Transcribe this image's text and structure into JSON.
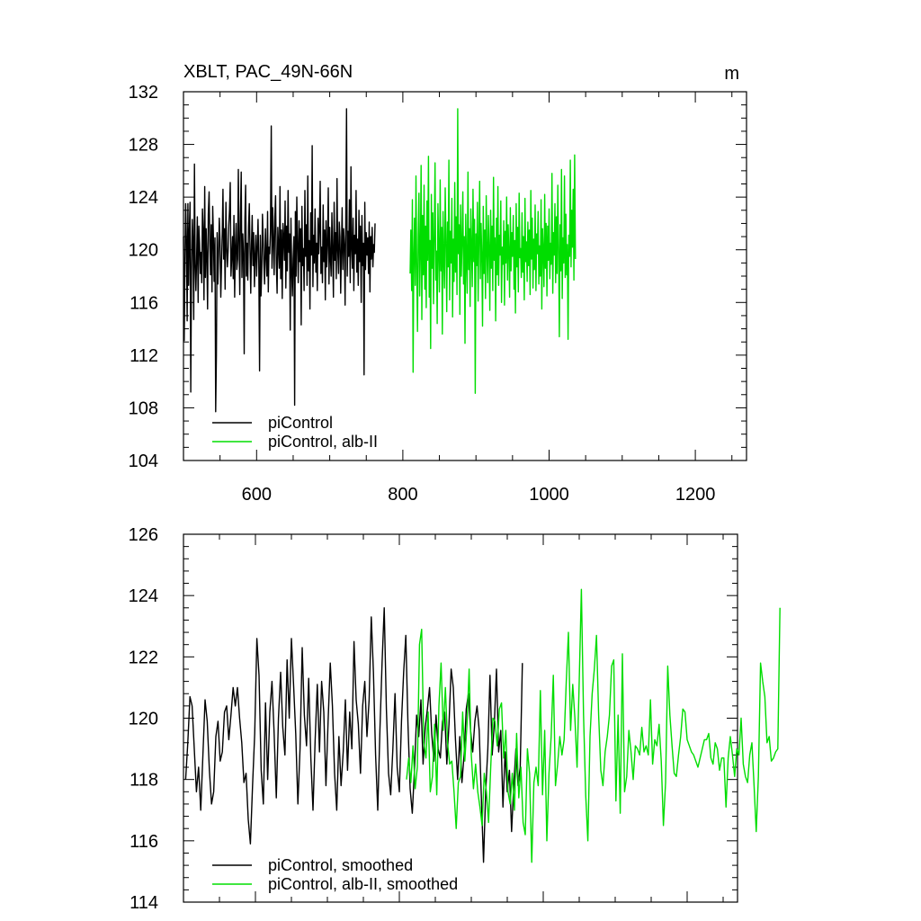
{
  "chart_data": [
    {
      "type": "line",
      "title": "XBLT, PAC_49N-66N",
      "units": "m",
      "xlim": [
        500,
        1270
      ],
      "ylim": [
        104,
        132
      ],
      "xticks": [
        600,
        800,
        1000,
        1200
      ],
      "yticks": [
        104,
        108,
        112,
        116,
        120,
        124,
        128,
        132
      ],
      "legend_position": "bottom-left",
      "series": [
        {
          "name": "piControl",
          "color": "#000000",
          "x_start": 500,
          "x_step": 1,
          "values": [
            121.0,
            113.1,
            118.7,
            123.5,
            120.6,
            114.6,
            123.5,
            117.3,
            121.4,
            123.6,
            109.2,
            118.4,
            122.3,
            120.6,
            114.7,
            126.5,
            118.9,
            116.9,
            119.3,
            122.5,
            116.0,
            121.8,
            120.5,
            118.2,
            119.8,
            117.5,
            123.1,
            121.4,
            116.2,
            124.8,
            117.9,
            121.6,
            119.4,
            115.5,
            122.7,
            124.4,
            120.3,
            118.1,
            121.9,
            116.8,
            123.3,
            121.0,
            117.6,
            120.9,
            107.7,
            112.0,
            121.3,
            117.4,
            119.6,
            122.4,
            120.8,
            116.4,
            118.9,
            121.2,
            124.6,
            119.3,
            121.6,
            117.0,
            123.6,
            120.2,
            118.7,
            119.9,
            121.9,
            123.0,
            125.1,
            118.0,
            119.5,
            121.0,
            117.8,
            122.6,
            116.4,
            120.1,
            122.0,
            118.5,
            119.3,
            126.1,
            120.6,
            116.6,
            122.7,
            125.9,
            117.9,
            121.2,
            119.7,
            112.1,
            122.3,
            124.9,
            118.0,
            120.5,
            117.7,
            121.8,
            123.5,
            119.9,
            116.7,
            120.4,
            122.6,
            118.8,
            121.3,
            117.2,
            119.6,
            121.1,
            118.0,
            120.1,
            122.3,
            119.2,
            110.8,
            121.1,
            116.5,
            118.3,
            122.7,
            120.8,
            118.9,
            117.4,
            121.6,
            119.5,
            118.0,
            122.9,
            116.8,
            120.2,
            119.7,
            121.4,
            129.4,
            118.6,
            123.2,
            120.7,
            118.1,
            122.5,
            124.1,
            119.0,
            116.7,
            121.7,
            120.2,
            118.6,
            124.8,
            117.8,
            121.5,
            116.3,
            122.0,
            120.9,
            119.2,
            123.7,
            117.1,
            121.8,
            118.4,
            124.5,
            119.8,
            121.2,
            113.9,
            122.4,
            118.5,
            116.5,
            119.3,
            121.0,
            108.2,
            122.9,
            118.0,
            124.0,
            120.4,
            117.5,
            122.2,
            119.1,
            121.6,
            114.3,
            123.3,
            118.8,
            120.1,
            116.9,
            124.5,
            119.5,
            121.9,
            117.3,
            125.6,
            118.4,
            120.7,
            115.5,
            122.8,
            119.6,
            127.9,
            117.2,
            121.1,
            119.0,
            123.1,
            118.3,
            120.5,
            116.9,
            122.4,
            119.7,
            121.8,
            125.2,
            118.2,
            120.2,
            117.5,
            123.4,
            119.1,
            121.5,
            116.2,
            122.2,
            118.7,
            120.6,
            124.7,
            117.4,
            121.7,
            119.4,
            118.0,
            122.8,
            120.1,
            116.4,
            123.6,
            119.2,
            121.3,
            117.8,
            125.4,
            120.0,
            118.2,
            122.1,
            121.0,
            116.7,
            119.9,
            123.2,
            118.5,
            121.6,
            120.3,
            115.8,
            122.6,
            130.7,
            118.0,
            121.4,
            119.5,
            123.8,
            117.5,
            126.3,
            120.1,
            118.6,
            122.4,
            116.9,
            121.1,
            119.7,
            124.5,
            118.3,
            120.8,
            117.3,
            123.0,
            119.1,
            121.8,
            116.0,
            122.6,
            118.8,
            120.5,
            110.5,
            123.6,
            118.5,
            121.3,
            119.6,
            120.9,
            118.2,
            122.1,
            116.8,
            121.0,
            119.3,
            121.7,
            118.7,
            120.4,
            119.8,
            122.0
          ]
        },
        {
          "name": "piControl, alb-II",
          "color": "#00dd00",
          "x_start": 810,
          "x_step": 1,
          "values": [
            118.2,
            121.5,
            116.9,
            123.8,
            110.7,
            119.6,
            122.4,
            117.3,
            125.6,
            118.9,
            113.8,
            121.1,
            124.3,
            116.5,
            119.8,
            126.4,
            114.7,
            122.6,
            118.1,
            124.9,
            117.0,
            121.8,
            115.6,
            123.7,
            119.2,
            127.1,
            116.4,
            120.7,
            112.5,
            124.2,
            118.6,
            122.8,
            115.9,
            121.3,
            126.6,
            117.7,
            119.9,
            114.4,
            123.5,
            120.1,
            116.8,
            125.3,
            118.4,
            121.7,
            113.6,
            122.9,
            119.4,
            117.1,
            124.7,
            120.6,
            115.3,
            122.1,
            118.7,
            126.8,
            116.2,
            121.4,
            119.0,
            123.9,
            114.9,
            120.8,
            117.6,
            125.1,
            118.3,
            122.5,
            116.6,
            130.7,
            119.7,
            121.9,
            115.1,
            123.4,
            118.0,
            120.4,
            124.4,
            117.4,
            121.0,
            112.9,
            122.7,
            119.3,
            116.7,
            125.9,
            118.5,
            121.6,
            115.7,
            123.1,
            120.0,
            117.2,
            124.6,
            119.1,
            122.3,
            109.1,
            121.2,
            118.8,
            123.6,
            116.1,
            120.5,
            125.2,
            117.8,
            122.0,
            119.5,
            114.2,
            123.3,
            118.2,
            121.5,
            116.3,
            124.1,
            119.9,
            117.5,
            122.6,
            120.3,
            115.4,
            123.0,
            118.6,
            121.8,
            116.9,
            125.5,
            119.2,
            120.9,
            114.6,
            122.4,
            118.1,
            124.8,
            117.3,
            121.1,
            119.6,
            123.7,
            116.0,
            120.2,
            118.9,
            122.2,
            115.8,
            121.4,
            119.0,
            124.0,
            117.7,
            121.9,
            119.8,
            116.4,
            123.2,
            118.4,
            121.3,
            119.5,
            122.6,
            117.0,
            120.7,
            115.2,
            123.5,
            118.7,
            121.7,
            116.8,
            124.3,
            119.4,
            120.1,
            117.9,
            122.8,
            118.3,
            121.0,
            116.2,
            123.9,
            119.1,
            120.6,
            117.6,
            122.1,
            118.8,
            121.5,
            116.6,
            124.5,
            119.3,
            122.4,
            117.1,
            120.8,
            118.5,
            123.4,
            116.9,
            121.2,
            119.7,
            122.9,
            117.4,
            120.3,
            118.0,
            123.8,
            115.5,
            121.6,
            119.9,
            117.2,
            124.2,
            118.6,
            122.0,
            116.5,
            121.8,
            119.2,
            123.1,
            117.8,
            120.5,
            118.9,
            125.8,
            116.7,
            121.3,
            119.6,
            123.5,
            117.5,
            122.5,
            118.2,
            124.9,
            119.8,
            113.4,
            121.9,
            118.4,
            126.1,
            116.3,
            120.9,
            119.0,
            125.6,
            117.9,
            122.7,
            118.1,
            120.4,
            113.2,
            121.1,
            119.5,
            126.8,
            118.7,
            123.0,
            120.2,
            124.6,
            117.7,
            127.2,
            119.3
          ]
        }
      ]
    },
    {
      "type": "line",
      "xlim": [
        500,
        1270
      ],
      "ylim": [
        114,
        126
      ],
      "yticks": [
        114,
        116,
        118,
        120,
        122,
        124,
        126
      ],
      "legend_position": "bottom-left",
      "series": [
        {
          "name": "piControl, smoothed",
          "color": "#000000",
          "x_start": 503,
          "x_step": 3,
          "values": [
            118.0,
            119.2,
            120.7,
            120.4,
            119.0,
            117.6,
            118.4,
            117.0,
            118.8,
            120.6,
            119.9,
            118.3,
            117.2,
            117.6,
            119.4,
            119.9,
            118.6,
            118.9,
            120.2,
            120.4,
            119.3,
            120.1,
            121.0,
            120.4,
            121.0,
            120.0,
            119.2,
            117.9,
            118.2,
            116.7,
            115.9,
            117.8,
            119.5,
            122.6,
            121.4,
            118.3,
            117.2,
            120.5,
            118.0,
            120.2,
            121.2,
            119.5,
            117.4,
            120.0,
            121.5,
            119.7,
            118.8,
            121.9,
            120.0,
            122.6,
            121.1,
            119.5,
            117.2,
            119.0,
            122.3,
            120.1,
            119.1,
            121.3,
            118.7,
            117.0,
            119.3,
            121.1,
            118.9,
            121.2,
            120.2,
            117.8,
            119.9,
            121.8,
            120.4,
            118.2,
            117.0,
            119.4,
            117.8,
            118.9,
            120.6,
            118.3,
            120.2,
            119.0,
            122.5,
            120.6,
            119.8,
            118.2,
            120.4,
            121.2,
            119.4,
            120.6,
            123.3,
            121.5,
            118.8,
            117.0,
            119.6,
            121.8,
            123.6,
            120.3,
            118.2,
            117.5,
            119.0,
            120.8,
            118.4,
            117.6,
            119.9,
            121.5,
            122.7,
            119.8,
            117.7,
            116.9,
            118.3,
            120.1,
            119.4,
            120.6,
            118.5,
            119.7,
            120.3,
            121.0,
            119.5,
            118.6,
            120.1,
            119.0,
            118.7,
            119.9,
            120.2,
            118.5,
            119.8,
            121.6,
            121.0,
            119.3,
            118.0,
            119.4,
            117.9,
            118.8,
            120.3,
            120.8,
            119.6,
            118.9,
            119.9,
            120.4,
            119.6,
            117.4,
            115.3,
            117.6,
            119.0,
            121.4,
            118.8,
            119.8,
            121.6,
            118.9,
            119.6,
            117.1,
            118.9,
            117.6,
            118.3,
            116.3,
            117.8,
            119.0,
            117.8,
            118.4,
            121.8
          ]
        },
        {
          "name": "piControl, alb-II, smoothed",
          "color": "#00dd00",
          "x_start": 810,
          "x_step": 3,
          "values": [
            118.0,
            118.7,
            117.9,
            119.1,
            117.7,
            118.4,
            122.4,
            122.9,
            119.2,
            118.7,
            120.2,
            117.6,
            118.1,
            119.8,
            117.5,
            120.4,
            121.8,
            119.6,
            121.0,
            119.2,
            118.5,
            118.6,
            117.6,
            116.4,
            117.9,
            118.1,
            120.2,
            118.6,
            119.8,
            121.6,
            118.8,
            117.7,
            118.5,
            117.6,
            117.1,
            116.5,
            118.2,
            117.6,
            116.6,
            118.4,
            120.0,
            119.9,
            119.1,
            120.3,
            120.5,
            118.7,
            119.6,
            117.6,
            117.2,
            118.2,
            117.0,
            119.5,
            117.4,
            118.4,
            116.6,
            116.2,
            119.0,
            118.2,
            115.3,
            117.9,
            118.4,
            117.8,
            120.9,
            117.5,
            119.6,
            116.0,
            118.2,
            119.4,
            121.4,
            117.8,
            118.5,
            119.4,
            118.8,
            119.3,
            121.2,
            122.8,
            119.6,
            121.1,
            120.0,
            118.4,
            121.2,
            124.2,
            120.1,
            117.5,
            116.0,
            119.4,
            120.8,
            121.6,
            122.7,
            120.1,
            118.3,
            117.8,
            118.9,
            119.4,
            120.1,
            121.7,
            121.9,
            117.3,
            120.1,
            116.9,
            122.1,
            117.6,
            118.1,
            119.6,
            118.9,
            118.0,
            119.1,
            119.0,
            118.8,
            119.7,
            118.9,
            119.1,
            118.8,
            120.6,
            118.5,
            119.3,
            119.1,
            119.8,
            118.6,
            116.5,
            117.9,
            121.7,
            120.1,
            119.1,
            118.2,
            118.1,
            118.8,
            119.4,
            120.3,
            120.2,
            119.3,
            119.1,
            118.9,
            118.8,
            118.6,
            118.4,
            118.7,
            119.0,
            119.3,
            119.3,
            119.5,
            118.7,
            118.5,
            119.2,
            119.0,
            118.3,
            118.7,
            118.7,
            117.1,
            118.7,
            119.4,
            118.8,
            118.1,
            119.0,
            118.8,
            120.0,
            118.5,
            118.1,
            117.9,
            118.8,
            119.2,
            117.8,
            116.3,
            118.1,
            121.8,
            121.2,
            120.7,
            119.2,
            119.4,
            118.6,
            118.7,
            118.9,
            119.0,
            123.6
          ]
        }
      ]
    }
  ]
}
